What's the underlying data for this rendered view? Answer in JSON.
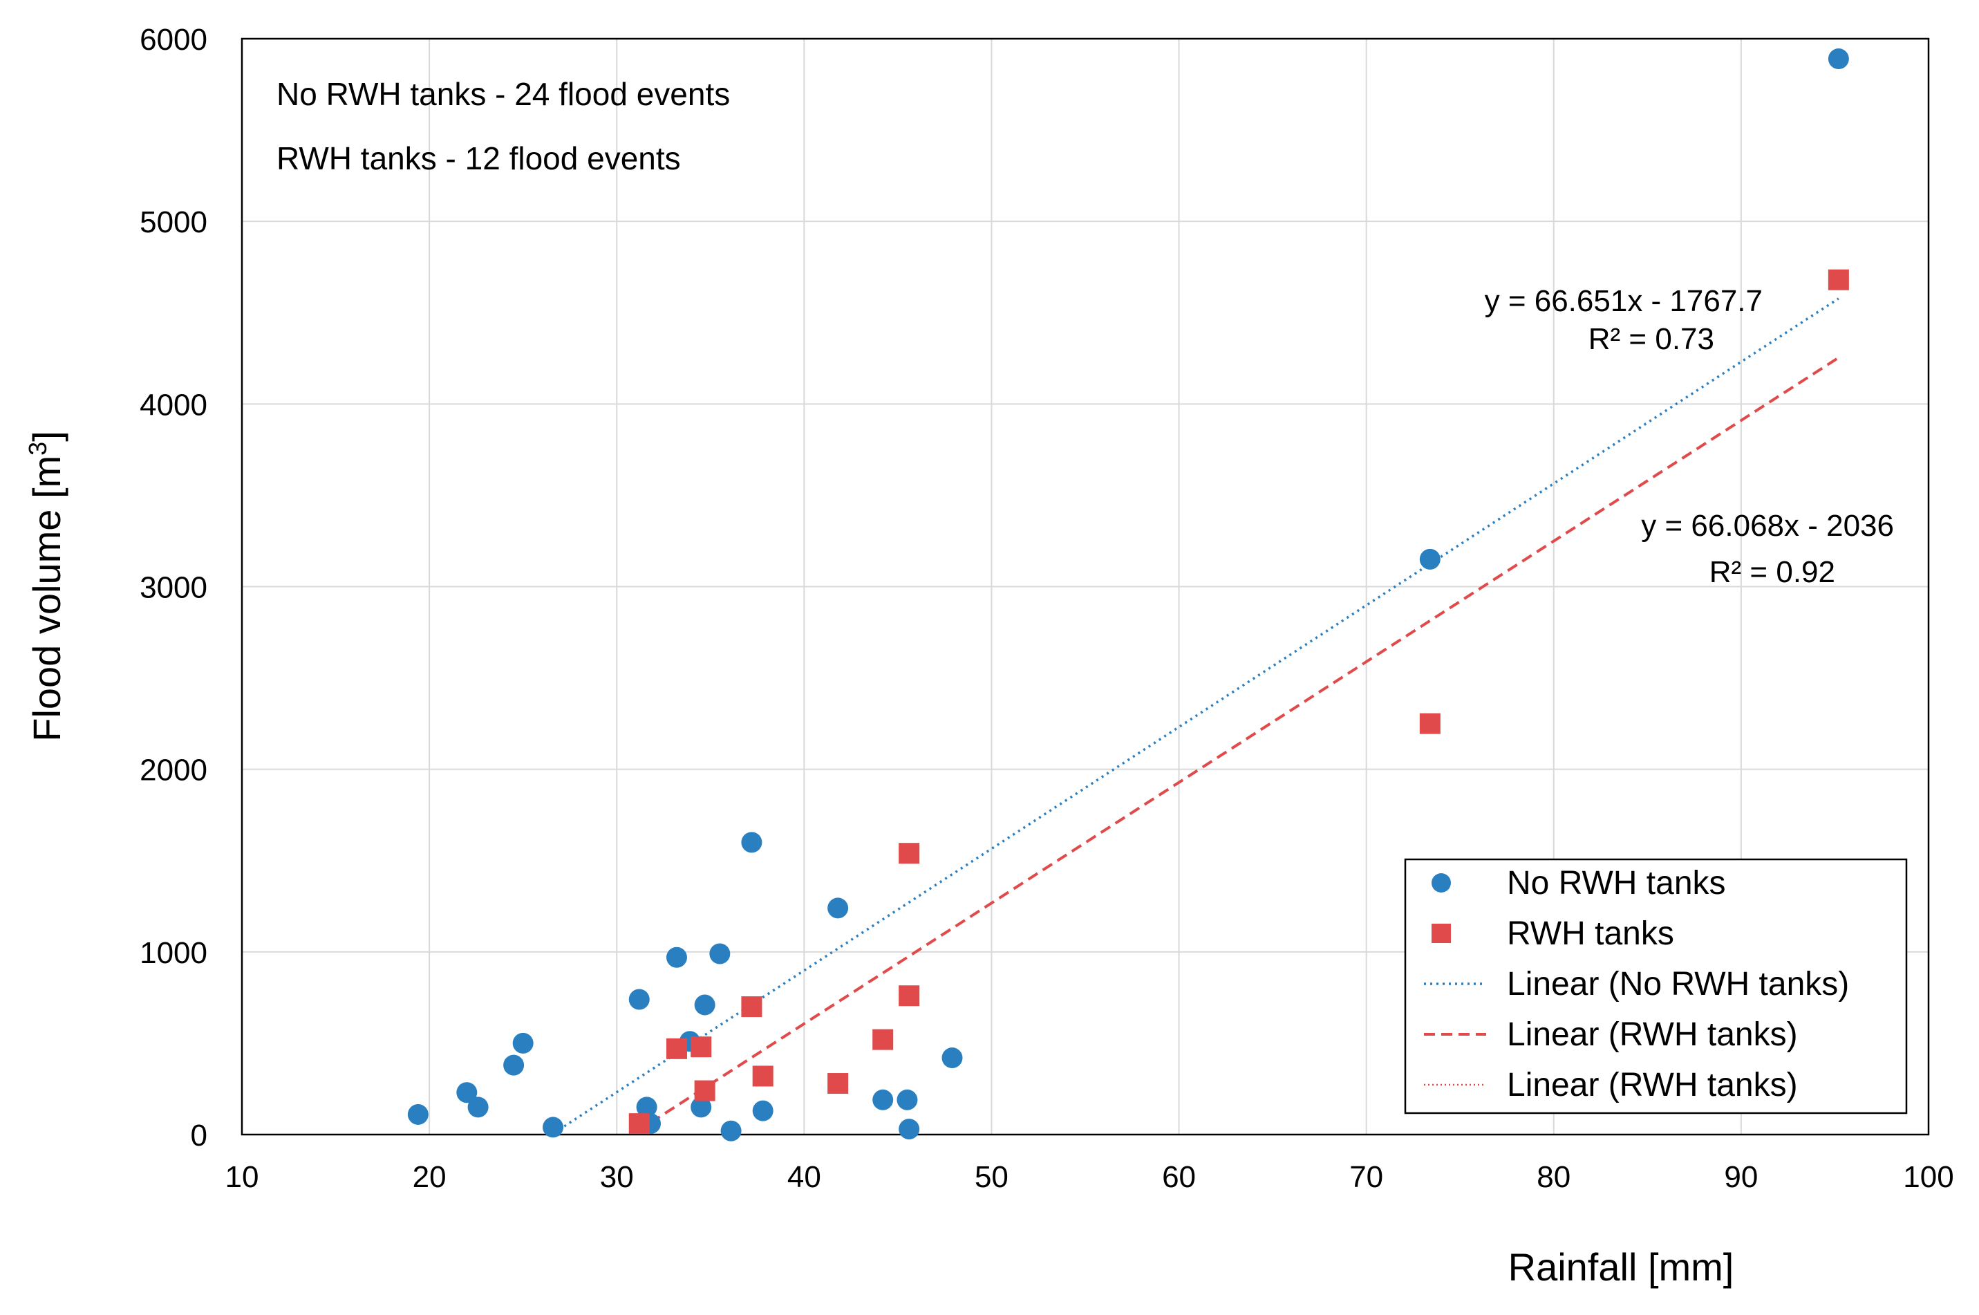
{
  "chart_data": {
    "type": "scatter",
    "title": "",
    "xlabel": "Rainfall [mm]",
    "ylabel_main": "Flood volume [m",
    "ylabel_sup": "3",
    "ylabel_end": "]",
    "xlim": [
      10,
      100
    ],
    "ylim": [
      0,
      6000
    ],
    "xticks": [
      10,
      20,
      30,
      40,
      50,
      60,
      70,
      80,
      90,
      100
    ],
    "yticks": [
      0,
      1000,
      2000,
      3000,
      4000,
      5000,
      6000
    ],
    "grid": true,
    "legend_position": "bottom-right",
    "annotations": [
      "No RWH tanks - 24 flood events",
      "RWH tanks - 12 flood events"
    ],
    "series": [
      {
        "name": "No RWH tanks",
        "marker": "circle",
        "color": "#2A7FC1",
        "points": [
          [
            19.4,
            110
          ],
          [
            22.0,
            230
          ],
          [
            22.6,
            150
          ],
          [
            24.5,
            380
          ],
          [
            25.0,
            500
          ],
          [
            26.6,
            40
          ],
          [
            31.2,
            740
          ],
          [
            31.6,
            150
          ],
          [
            31.8,
            60
          ],
          [
            33.2,
            970
          ],
          [
            33.9,
            510
          ],
          [
            34.5,
            150
          ],
          [
            34.7,
            710
          ],
          [
            35.5,
            990
          ],
          [
            36.1,
            20
          ],
          [
            37.2,
            1600
          ],
          [
            37.8,
            130
          ],
          [
            41.8,
            1240
          ],
          [
            44.2,
            190
          ],
          [
            45.5,
            190
          ],
          [
            45.6,
            30
          ],
          [
            47.9,
            420
          ],
          [
            73.4,
            3150
          ],
          [
            95.2,
            5890
          ]
        ],
        "trendline": {
          "name": "Linear (No RWH tanks)",
          "style": "dotted",
          "x_range": [
            27.2,
            95.2
          ],
          "slope": 66.651,
          "intercept": -1767.7,
          "equation": "y = 66.651x - 1767.7",
          "r2": "R² = 0.73"
        }
      },
      {
        "name": "RWH tanks",
        "marker": "square",
        "color": "#E04A4A",
        "points": [
          [
            31.2,
            60
          ],
          [
            33.2,
            470
          ],
          [
            34.5,
            480
          ],
          [
            34.7,
            240
          ],
          [
            37.2,
            700
          ],
          [
            37.8,
            320
          ],
          [
            41.8,
            280
          ],
          [
            44.2,
            520
          ],
          [
            45.6,
            760
          ],
          [
            45.6,
            1540
          ],
          [
            73.4,
            2250
          ],
          [
            95.2,
            4680
          ]
        ],
        "trendline": {
          "name": "Linear (RWH tanks)",
          "style": "dashed",
          "x_range": [
            31.8,
            95.2
          ],
          "slope": 66.068,
          "intercept": -2036,
          "equation": "y = 66.068x - 2036",
          "r2": "R² = 0.92"
        }
      }
    ],
    "legend": [
      {
        "label": "No RWH tanks",
        "kind": "circle",
        "color": "#2A7FC1"
      },
      {
        "label": "RWH tanks",
        "kind": "square",
        "color": "#E04A4A"
      },
      {
        "label": "Linear (No RWH tanks)",
        "kind": "dotted",
        "color": "#2A7FC1"
      },
      {
        "label": "Linear (RWH tanks)",
        "kind": "dashed",
        "color": "#E04A4A"
      },
      {
        "label": "Linear (RWH tanks)",
        "kind": "dotted-thin",
        "color": "#E04A4A"
      }
    ]
  }
}
